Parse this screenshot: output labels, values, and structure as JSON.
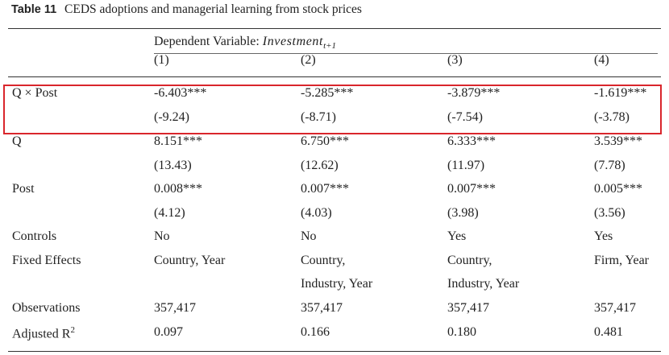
{
  "caption": {
    "label": "Table 11",
    "title": "CEDS adoptions and managerial learning from stock prices"
  },
  "header": {
    "dependent_prefix": "Dependent Variable: ",
    "dependent_var": "Investment",
    "dependent_sub": "t+1",
    "columns": [
      "(1)",
      "(2)",
      "(3)",
      "(4)"
    ]
  },
  "rows": [
    {
      "label": "Q × Post",
      "values": [
        "-6.403***",
        "-5.285***",
        "-3.879***",
        "-1.619***"
      ]
    },
    {
      "label": "",
      "values": [
        "(-9.24)",
        "(-8.71)",
        "(-7.54)",
        "(-3.78)"
      ]
    },
    {
      "label": "Q",
      "values": [
        "8.151***",
        "6.750***",
        "6.333***",
        "3.539***"
      ]
    },
    {
      "label": "",
      "values": [
        "(13.43)",
        "(12.62)",
        "(11.97)",
        "(7.78)"
      ]
    },
    {
      "label": "Post",
      "values": [
        "0.008***",
        "0.007***",
        "0.007***",
        "0.005***"
      ]
    },
    {
      "label": "",
      "values": [
        "(4.12)",
        "(4.03)",
        "(3.98)",
        "(3.56)"
      ]
    },
    {
      "label": "Controls",
      "values": [
        "No",
        "No",
        "Yes",
        "Yes"
      ]
    },
    {
      "label": "Fixed Effects",
      "values": [
        "Country, Year",
        "Country,",
        "Country,",
        "Firm, Year"
      ]
    },
    {
      "label": "",
      "values": [
        "",
        "Industry, Year",
        "Industry, Year",
        ""
      ]
    },
    {
      "label": "Observations",
      "values": [
        "357,417",
        "357,417",
        "357,417",
        "357,417"
      ]
    },
    {
      "label": "Adjusted R",
      "label_sup": "2",
      "values": [
        "0.097",
        "0.166",
        "0.180",
        "0.481"
      ]
    }
  ],
  "colors": {
    "highlight": "#d9262c",
    "text": "#222222"
  }
}
